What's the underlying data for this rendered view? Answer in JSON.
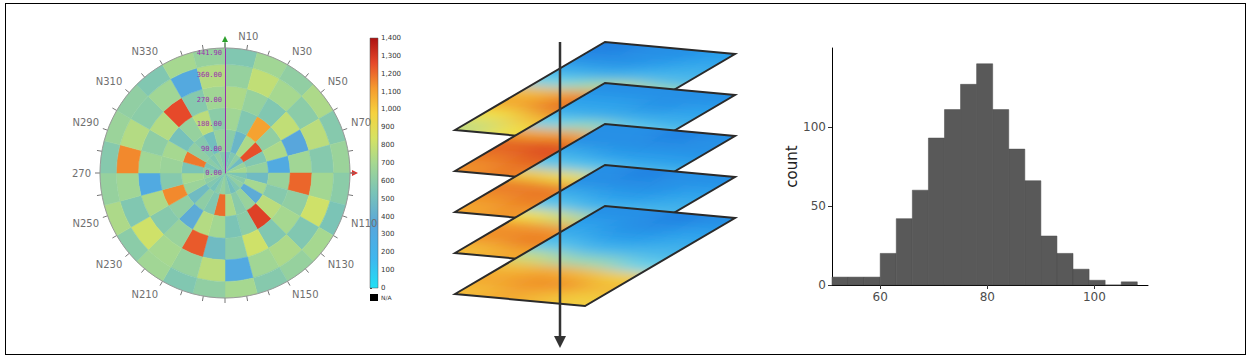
{
  "chart_data": [
    {
      "type": "polar",
      "alim": [
        0,
        360
      ],
      "angle_ticks": [
        0,
        10,
        20,
        30,
        40,
        50,
        60,
        70,
        80,
        90,
        100,
        110,
        120,
        130,
        140,
        150,
        160,
        170,
        180,
        190,
        200,
        210,
        220,
        230,
        240,
        250,
        260,
        270,
        280,
        290,
        300,
        310,
        320,
        330,
        340,
        350
      ],
      "angle_labels": [
        {
          "value": 10,
          "label": "N10"
        },
        {
          "value": 30,
          "label": "N30"
        },
        {
          "value": 50,
          "label": "N50"
        },
        {
          "value": 70,
          "label": "N70"
        },
        {
          "value": 110,
          "label": "N110"
        },
        {
          "value": 130,
          "label": "N130"
        },
        {
          "value": 150,
          "label": "N150"
        },
        {
          "value": 210,
          "label": "N210"
        },
        {
          "value": 230,
          "label": "N230"
        },
        {
          "value": 250,
          "label": "N250"
        },
        270,
        {
          "value": 290,
          "label": "N290"
        },
        {
          "value": 310,
          "label": "N310"
        },
        {
          "value": 330,
          "label": "N330"
        }
      ],
      "rlim": [
        0,
        460
      ],
      "rticks": [
        {
          "value": 0,
          "label": "0.00"
        },
        {
          "value": 90,
          "label": "90.00"
        },
        {
          "value": 180,
          "label": "180.00"
        },
        {
          "value": 270,
          "label": "270.00"
        },
        {
          "value": 360,
          "label": "360.00"
        },
        {
          "value": 441.9,
          "label": "441.90"
        }
      ],
      "radius_edges": [
        0,
        80,
        160,
        240,
        320,
        400,
        460
      ],
      "angle_edges": [
        0,
        15,
        30,
        45,
        60,
        75,
        90,
        105,
        120,
        135,
        150,
        165,
        180,
        195,
        210,
        225,
        240,
        255,
        270,
        285,
        300,
        315,
        330,
        345,
        360
      ],
      "cells": [
        [
          520,
          560,
          610,
          480,
          650,
          700,
          540,
          590,
          620,
          560,
          500,
          580,
          640,
          600,
          530,
          570,
          610,
          660,
          590,
          540,
          600,
          560,
          620,
          580
        ],
        [
          600,
          450,
          720,
          1250,
          560,
          640,
          480,
          700,
          380,
          650,
          590,
          720,
          1200,
          560,
          610,
          480,
          660,
          700,
          540,
          1180,
          620,
          580,
          500,
          650
        ],
        [
          680,
          560,
          1100,
          620,
          720,
          300,
          650,
          580,
          760,
          1280,
          600,
          540,
          690,
          740,
          380,
          620,
          1150,
          580,
          660,
          700,
          520,
          640,
          760,
          600
        ],
        [
          720,
          640,
          560,
          780,
          350,
          680,
          1210,
          620,
          700,
          560,
          820,
          600,
          480,
          1230,
          650,
          580,
          720,
          300,
          680,
          610,
          740,
          1260,
          580,
          680
        ],
        [
          640,
          780,
          700,
          600,
          760,
          580,
          690,
          820,
          560,
          720,
          680,
          310,
          760,
          640,
          700,
          820,
          560,
          680,
          1150,
          740,
          600,
          680,
          320,
          740
        ],
        [
          560,
          680,
          620,
          720,
          580,
          660,
          600,
          540,
          700,
          640,
          580,
          700,
          620,
          560,
          680,
          600,
          720,
          640,
          580,
          660,
          620,
          560,
          700,
          640
        ]
      ],
      "crange": [
        0,
        1400
      ],
      "cticks": [
        0,
        100,
        200,
        300,
        400,
        500,
        600,
        700,
        800,
        900,
        1000,
        1100,
        1200,
        1300,
        1400
      ],
      "na_label": "N/A"
    },
    {
      "type": "slices",
      "clim": [
        0,
        1
      ],
      "slices": [
        [
          [
            0.55,
            0.6,
            0.75,
            0.7,
            0.45,
            0.3,
            0.2,
            0.15
          ],
          [
            0.6,
            0.7,
            0.85,
            0.8,
            0.5,
            0.3,
            0.2,
            0.2
          ],
          [
            0.65,
            0.75,
            0.9,
            0.85,
            0.55,
            0.35,
            0.25,
            0.2
          ],
          [
            0.7,
            0.8,
            0.85,
            0.7,
            0.5,
            0.35,
            0.3,
            0.25
          ]
        ],
        [
          [
            0.8,
            0.85,
            0.9,
            0.75,
            0.45,
            0.3,
            0.25,
            0.2
          ],
          [
            0.85,
            0.9,
            0.95,
            0.8,
            0.5,
            0.3,
            0.25,
            0.2
          ],
          [
            0.8,
            0.9,
            0.9,
            0.7,
            0.45,
            0.3,
            0.2,
            0.2
          ],
          [
            0.75,
            0.8,
            0.8,
            0.6,
            0.4,
            0.3,
            0.25,
            0.2
          ]
        ],
        [
          [
            0.75,
            0.8,
            0.85,
            0.65,
            0.4,
            0.3,
            0.2,
            0.2
          ],
          [
            0.8,
            0.85,
            0.85,
            0.6,
            0.4,
            0.25,
            0.2,
            0.2
          ],
          [
            0.75,
            0.8,
            0.8,
            0.55,
            0.35,
            0.25,
            0.2,
            0.15
          ],
          [
            0.7,
            0.75,
            0.7,
            0.5,
            0.35,
            0.25,
            0.2,
            0.2
          ]
        ],
        [
          [
            0.7,
            0.8,
            0.8,
            0.6,
            0.4,
            0.3,
            0.2,
            0.2
          ],
          [
            0.75,
            0.85,
            0.8,
            0.55,
            0.35,
            0.25,
            0.2,
            0.15
          ],
          [
            0.75,
            0.8,
            0.75,
            0.5,
            0.35,
            0.25,
            0.2,
            0.2
          ],
          [
            0.7,
            0.75,
            0.65,
            0.45,
            0.35,
            0.3,
            0.25,
            0.2
          ]
        ],
        [
          [
            0.7,
            0.75,
            0.7,
            0.55,
            0.4,
            0.3,
            0.25,
            0.2
          ],
          [
            0.75,
            0.8,
            0.75,
            0.5,
            0.35,
            0.25,
            0.2,
            0.2
          ],
          [
            0.7,
            0.8,
            0.7,
            0.5,
            0.35,
            0.25,
            0.2,
            0.15
          ],
          [
            0.65,
            0.7,
            0.65,
            0.45,
            0.35,
            0.3,
            0.25,
            0.2
          ]
        ]
      ]
    },
    {
      "type": "histogram",
      "bins": [
        51,
        54,
        57,
        60,
        63,
        66,
        69,
        72,
        75,
        78,
        81,
        84,
        87,
        90,
        93,
        96,
        99,
        102,
        105,
        108
      ],
      "counts": [
        5,
        5,
        5,
        20,
        42,
        60,
        93,
        111,
        127,
        140,
        111,
        86,
        66,
        31,
        20,
        10,
        3,
        0,
        2
      ],
      "color": "#595959",
      "xlim": [
        51,
        110
      ],
      "xticks": [
        60,
        80,
        100
      ],
      "ylim": [
        0,
        150
      ],
      "yticks": [
        0,
        50,
        100
      ],
      "ylabel": "count"
    }
  ]
}
